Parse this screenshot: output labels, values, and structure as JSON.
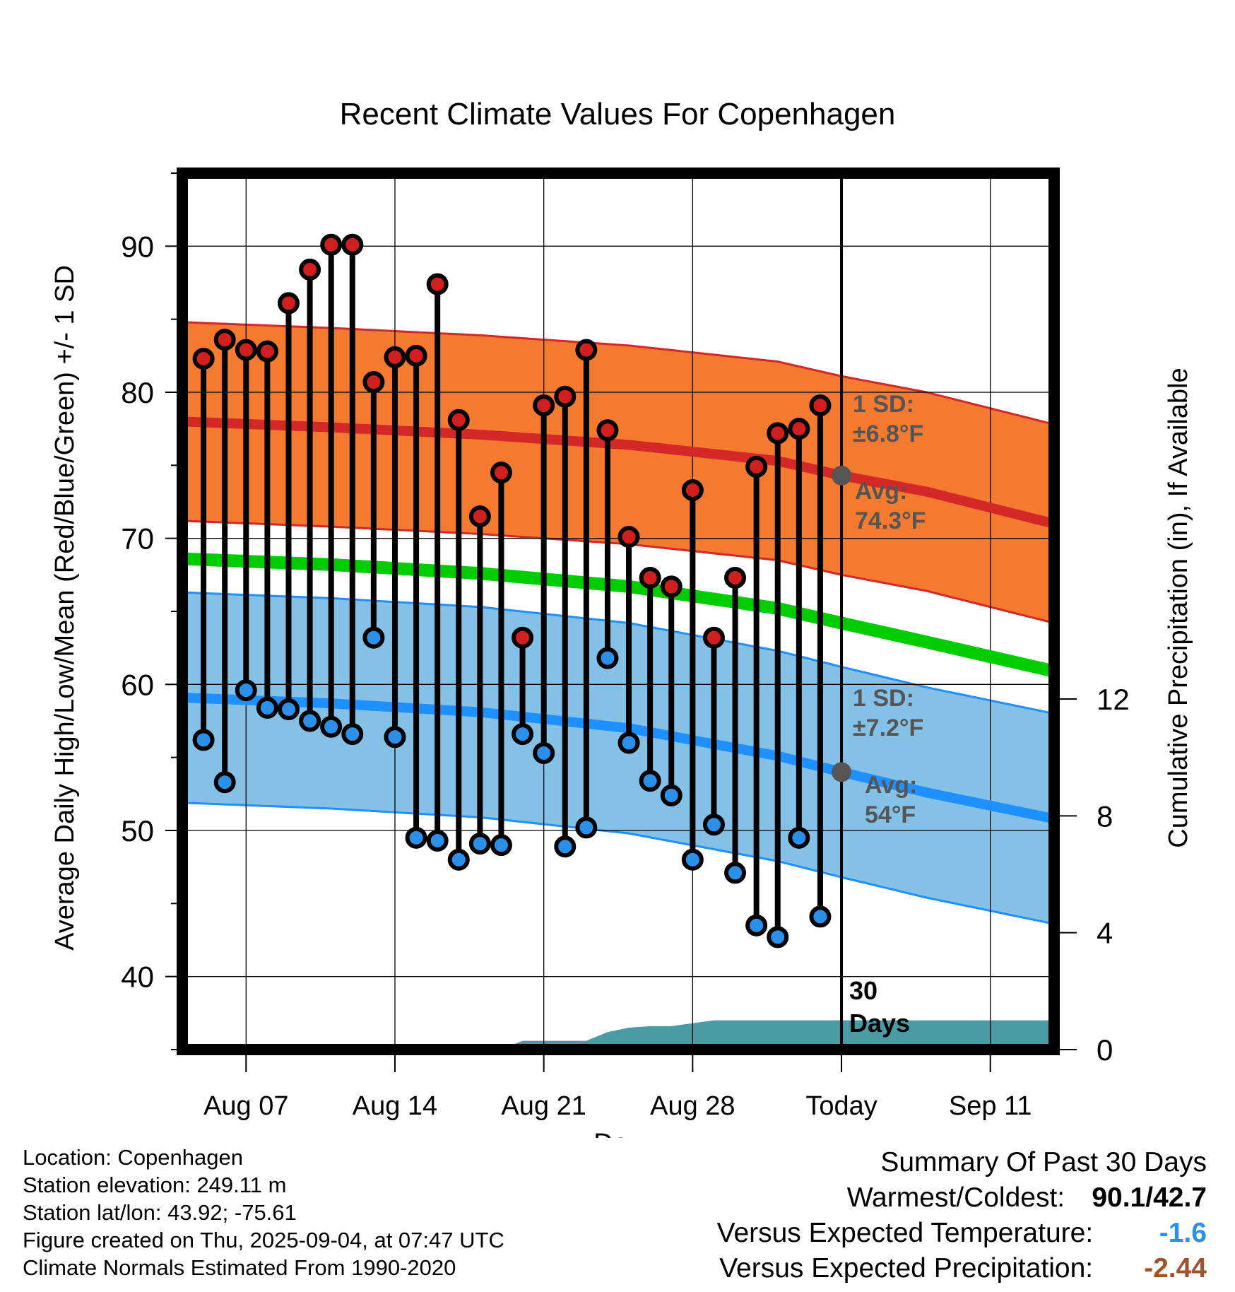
{
  "chart_data": {
    "type": "line",
    "title": "Recent Climate Values For Copenhagen",
    "xlabel": "Day",
    "ylabel": "Average Daily High/Low/Mean (Red/Blue/Green) +/- 1 SD",
    "y2label": "Cumulative Precipitation (in), If Available",
    "ylim": [
      35,
      95
    ],
    "y2lim": [
      0,
      30
    ],
    "xlim": [
      "2025-08-04",
      "2025-09-14"
    ],
    "x_ticks": [
      {
        "date": "2025-08-07",
        "label": "Aug 07"
      },
      {
        "date": "2025-08-14",
        "label": "Aug 14"
      },
      {
        "date": "2025-08-21",
        "label": "Aug 21"
      },
      {
        "date": "2025-08-28",
        "label": "Aug 28"
      },
      {
        "date": "2025-09-04",
        "label": "Today"
      },
      {
        "date": "2025-09-11",
        "label": "Sep 11"
      }
    ],
    "y_ticks": [
      40,
      50,
      60,
      70,
      80,
      90
    ],
    "y2_ticks": [
      0,
      4,
      8,
      12
    ],
    "grid": true,
    "dates": [
      "2025-08-05",
      "2025-08-06",
      "2025-08-07",
      "2025-08-08",
      "2025-08-09",
      "2025-08-10",
      "2025-08-11",
      "2025-08-12",
      "2025-08-13",
      "2025-08-14",
      "2025-08-15",
      "2025-08-16",
      "2025-08-17",
      "2025-08-18",
      "2025-08-19",
      "2025-08-20",
      "2025-08-21",
      "2025-08-22",
      "2025-08-23",
      "2025-08-24",
      "2025-08-25",
      "2025-08-26",
      "2025-08-27",
      "2025-08-28",
      "2025-08-29",
      "2025-08-30",
      "2025-08-31",
      "2025-09-01",
      "2025-09-02",
      "2025-09-03"
    ],
    "daily_high": [
      82.3,
      83.6,
      82.9,
      82.8,
      86.1,
      88.4,
      90.1,
      90.1,
      80.7,
      82.4,
      82.5,
      87.4,
      78.1,
      71.5,
      74.5,
      63.2,
      79.1,
      79.7,
      82.9,
      77.4,
      70.1,
      67.3,
      66.7,
      73.3,
      63.2,
      67.3,
      74.9,
      77.2,
      77.5,
      79.1
    ],
    "daily_low": [
      56.2,
      53.3,
      59.6,
      58.4,
      58.3,
      57.5,
      57.1,
      56.6,
      63.2,
      56.4,
      49.5,
      49.3,
      48.0,
      49.1,
      49.0,
      56.6,
      55.3,
      48.9,
      50.2,
      61.8,
      56.0,
      53.4,
      52.4,
      48.0,
      50.4,
      47.1,
      43.5,
      42.7,
      49.5,
      44.1
    ],
    "normals": {
      "dates": [
        "2025-08-04",
        "2025-08-11",
        "2025-08-18",
        "2025-08-25",
        "2025-09-01",
        "2025-09-04",
        "2025-09-08",
        "2025-09-14"
      ],
      "high_avg": [
        78.0,
        77.6,
        77.1,
        76.4,
        75.3,
        74.3,
        73.2,
        71.0
      ],
      "high_sd": 6.8,
      "low_avg": [
        59.1,
        58.7,
        58.1,
        57.0,
        55.1,
        54.0,
        52.6,
        50.8
      ],
      "low_sd": 7.2,
      "mean_avg": [
        68.6,
        68.2,
        67.6,
        66.7,
        65.2,
        64.2,
        62.9,
        60.9
      ]
    },
    "precip_cumulative": {
      "dates": [
        "2025-08-04",
        "2025-08-18",
        "2025-08-19",
        "2025-08-20",
        "2025-08-22",
        "2025-08-23",
        "2025-08-24",
        "2025-08-25",
        "2025-08-26",
        "2025-08-27",
        "2025-08-28",
        "2025-08-29",
        "2025-09-14"
      ],
      "values": [
        0,
        0,
        0,
        0.3,
        0.3,
        0.3,
        0.6,
        0.75,
        0.8,
        0.8,
        0.9,
        1.0,
        1.0
      ]
    },
    "annotations": {
      "high_sd_label": "1 SD:",
      "high_sd_value": "±6.8°F",
      "high_avg_label": "Avg:",
      "high_avg_value": "74.3°F",
      "low_sd_label": "1 SD:",
      "low_sd_value": "±7.2°F",
      "low_avg_label": "Avg:",
      "low_avg_value": "54°F",
      "days_number": "30",
      "days_word": "Days"
    },
    "colors": {
      "high_band": "#f47a30",
      "high_line": "#d42727",
      "low_band": "#85c1e6",
      "low_line": "#1e90ff",
      "mean_line": "#00cc00",
      "precip": "#4a9ba4",
      "high_dot": "#d11f1f",
      "low_dot": "#2b90ea",
      "today_dot": "#555555"
    }
  },
  "footer": {
    "location": "Location: Copenhagen",
    "elevation": "Station elevation: 249.11 m",
    "latlon": "Station lat/lon: 43.92; -75.61",
    "created": "Figure created on Thu, 2025-09-04, at 07:47 UTC",
    "normals": "Climate Normals Estimated From 1990-2020"
  },
  "summary": {
    "title": "Summary Of Past 30 Days",
    "warm_cold_label": "Warmest/Coldest:",
    "warm_cold_value": "90.1/42.7",
    "temp_label": "Versus Expected Temperature:",
    "temp_value": "-1.6",
    "temp_color": "#2b90ea",
    "precip_label": "Versus Expected Precipitation:",
    "precip_value": "-2.44",
    "precip_color": "#a0522d"
  }
}
